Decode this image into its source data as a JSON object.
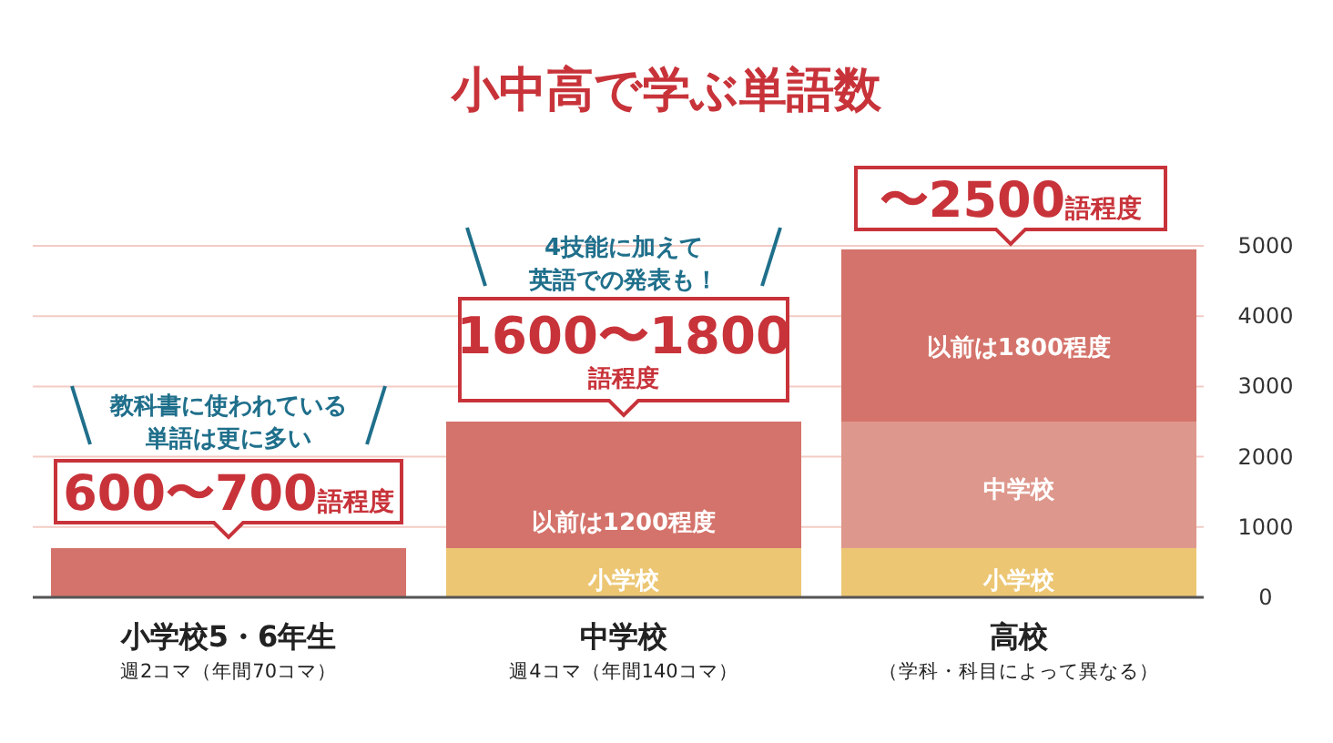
{
  "chart_data": {
    "type": "bar",
    "stacked": true,
    "title": "小中高で学ぶ単語数",
    "categories": [
      "小学校5・6年生",
      "中学校",
      "高校"
    ],
    "series": [
      {
        "colors": [
          "#d4736b",
          "#ecc673",
          "#ecc673"
        ],
        "values": [
          700,
          700,
          700
        ]
      },
      {
        "colors": [
          null,
          "#d4736b",
          "#de978c"
        ],
        "values": [
          null,
          1800,
          1800
        ]
      },
      {
        "colors": [
          null,
          null,
          "#d4736b"
        ],
        "values": [
          null,
          null,
          2450
        ]
      }
    ],
    "ylim": [
      0,
      5000
    ],
    "yticks": [
      0,
      1000,
      2000,
      3000,
      4000,
      5000
    ],
    "grid": "y",
    "annotations": [
      "教科書に使われている",
      "単語は更に多い",
      "600〜700語程度",
      "4技能に加えて",
      "英語での発表も！",
      "1600〜1800\n語程度",
      "〜2500語程度",
      "以前は1200程度",
      "小学校",
      "小学校",
      "中学校",
      "以前は1800程度",
      "週2コマ（年間70コマ）",
      "週4コマ（年間140コマ）",
      "（学科・科目によって異なる）"
    ]
  }
}
